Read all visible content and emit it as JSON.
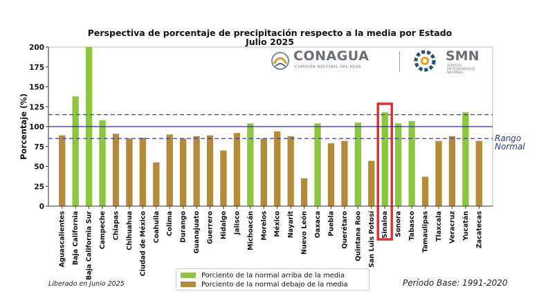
{
  "title_line1": "Perspectiva de porcentaje de precipitación respecto a la media por Estado",
  "title_line2": "Julio 2025",
  "footer_left": "Liberado en Junio 2025",
  "footer_right": "Período Base: 1991-2020",
  "range_label_line1": "Rango",
  "range_label_line2": "Normal",
  "logos": {
    "conagua_text": "CONAGUA",
    "conagua_sub": "COMISIÓN NACIONAL DEL AGUA",
    "smn_text": "SMN",
    "smn_sub1": "SERVICIO",
    "smn_sub2": "METEOROLÓGICO",
    "smn_sub3": "NACIONAL"
  },
  "colors": {
    "above": "#8dc63f",
    "below": "#b38b3a",
    "normal_line": "#2a2aa0",
    "range_line": "#3b3bb0",
    "highlight": "#e03030"
  },
  "highlighted_state": "Sinaloa",
  "chart_data": {
    "type": "bar",
    "ylabel": "Porcentaje (%)",
    "xlabel": "",
    "ylim": [
      0,
      200
    ],
    "yticks": [
      0,
      25,
      50,
      75,
      100,
      125,
      150,
      175,
      200
    ],
    "reference_lines": {
      "normal": 100,
      "range_low": 85,
      "range_high": 115
    },
    "categories": [
      "Aguascalientes",
      "Baja California",
      "Baja California Sur",
      "Campeche",
      "Chiapas",
      "Chihuahua",
      "Ciudad de México",
      "Coahuila",
      "Colima",
      "Durango",
      "Guanajuato",
      "Guerrero",
      "Hidalgo",
      "Jalisco",
      "Michoacán",
      "Morelos",
      "México",
      "Nayarit",
      "Nuevo León",
      "Oaxaca",
      "Puebla",
      "Querétaro",
      "Quintana Roo",
      "San Luis Potosí",
      "Sinaloa",
      "Sonora",
      "Tabasco",
      "Tamaulipas",
      "Tlaxcala",
      "Veracruz",
      "Yucatán",
      "Zacatecas"
    ],
    "values": [
      89,
      138,
      200,
      108,
      91,
      85,
      86,
      55,
      90,
      85,
      88,
      89,
      70,
      92,
      104,
      85,
      94,
      88,
      35,
      104,
      79,
      82,
      105,
      57,
      118,
      104,
      107,
      37,
      82,
      88,
      118,
      82
    ],
    "above_normal": [
      false,
      true,
      true,
      true,
      false,
      false,
      false,
      false,
      false,
      false,
      false,
      false,
      false,
      false,
      true,
      false,
      false,
      false,
      false,
      true,
      false,
      false,
      true,
      false,
      true,
      true,
      true,
      false,
      false,
      false,
      true,
      false
    ],
    "legend": [
      {
        "label": "Porciento de la normal arriba de la media",
        "color": "#8dc63f"
      },
      {
        "label": "Porciento de la normal debajo de la media",
        "color": "#b38b3a"
      }
    ],
    "legend_position": "bottom-center",
    "grid": false
  }
}
